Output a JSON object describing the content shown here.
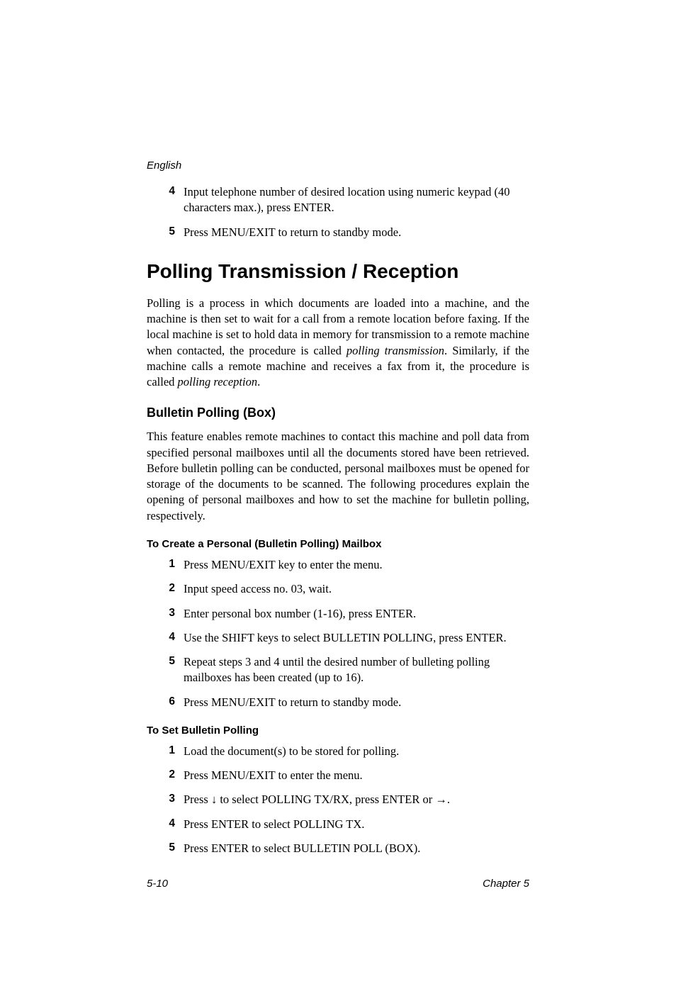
{
  "header": {
    "language_label": "English"
  },
  "intro_list": {
    "items": [
      {
        "num": "4",
        "text": "Input telephone number of desired location using numeric keypad (40 characters max.), press ENTER."
      },
      {
        "num": "5",
        "text": "Press MENU/EXIT to return to standby mode."
      }
    ]
  },
  "h1": "Polling Transmission / Reception",
  "para1_before": "Polling is a process in which documents are loaded into a machine, and the machine is then set to wait for a call from a remote location before faxing. If the local machine is set to hold data in memory for transmission to a remote machine when contacted, the procedure is called ",
  "para1_italic1": "polling transmission",
  "para1_mid": ". Similarly, if the machine calls a remote machine and receives a fax from it, the procedure is called ",
  "para1_italic2": "polling reception",
  "para1_after": ".",
  "h2": "Bulletin Polling (Box)",
  "para2": "This feature enables remote machines to contact this machine and poll data from specified personal mailboxes until all the documents stored have been retrieved. Before bulletin polling can be conducted, personal mailboxes must be opened for storage of the documents to be scanned. The following procedures explain the opening of personal mailboxes and how to set the machine for bulletin polling, respectively.",
  "h3a": "To Create a Personal (Bulletin Polling) Mailbox",
  "list_a": {
    "items": [
      {
        "num": "1",
        "text": "Press MENU/EXIT key to enter the menu."
      },
      {
        "num": "2",
        "text": "Input speed access no. 03, wait."
      },
      {
        "num": "3",
        "text": "Enter personal box number (1-16), press ENTER."
      },
      {
        "num": "4",
        "text": "Use the SHIFT keys to select BULLETIN POLLING, press ENTER."
      },
      {
        "num": "5",
        "text": "Repeat steps 3 and 4 until the desired number of bulleting polling mailboxes has been created (up to 16)."
      },
      {
        "num": "6",
        "text": "Press MENU/EXIT to return to standby mode."
      }
    ]
  },
  "h3b": "To Set Bulletin Polling",
  "list_b": {
    "items": [
      {
        "num": "1",
        "text": "Load the document(s) to be stored for polling."
      },
      {
        "num": "2",
        "text": "Press MENU/EXIT to enter the menu."
      },
      {
        "num": "3",
        "pre": "Press ",
        "mid": " to select POLLING TX/RX, press ENTER or ",
        "post": "."
      },
      {
        "num": "4",
        "text": "Press ENTER to select POLLING TX."
      },
      {
        "num": "5",
        "text": "Press ENTER to select BULLETIN POLL (BOX)."
      }
    ]
  },
  "footer": {
    "left": "5-10",
    "right": "Chapter 5"
  }
}
